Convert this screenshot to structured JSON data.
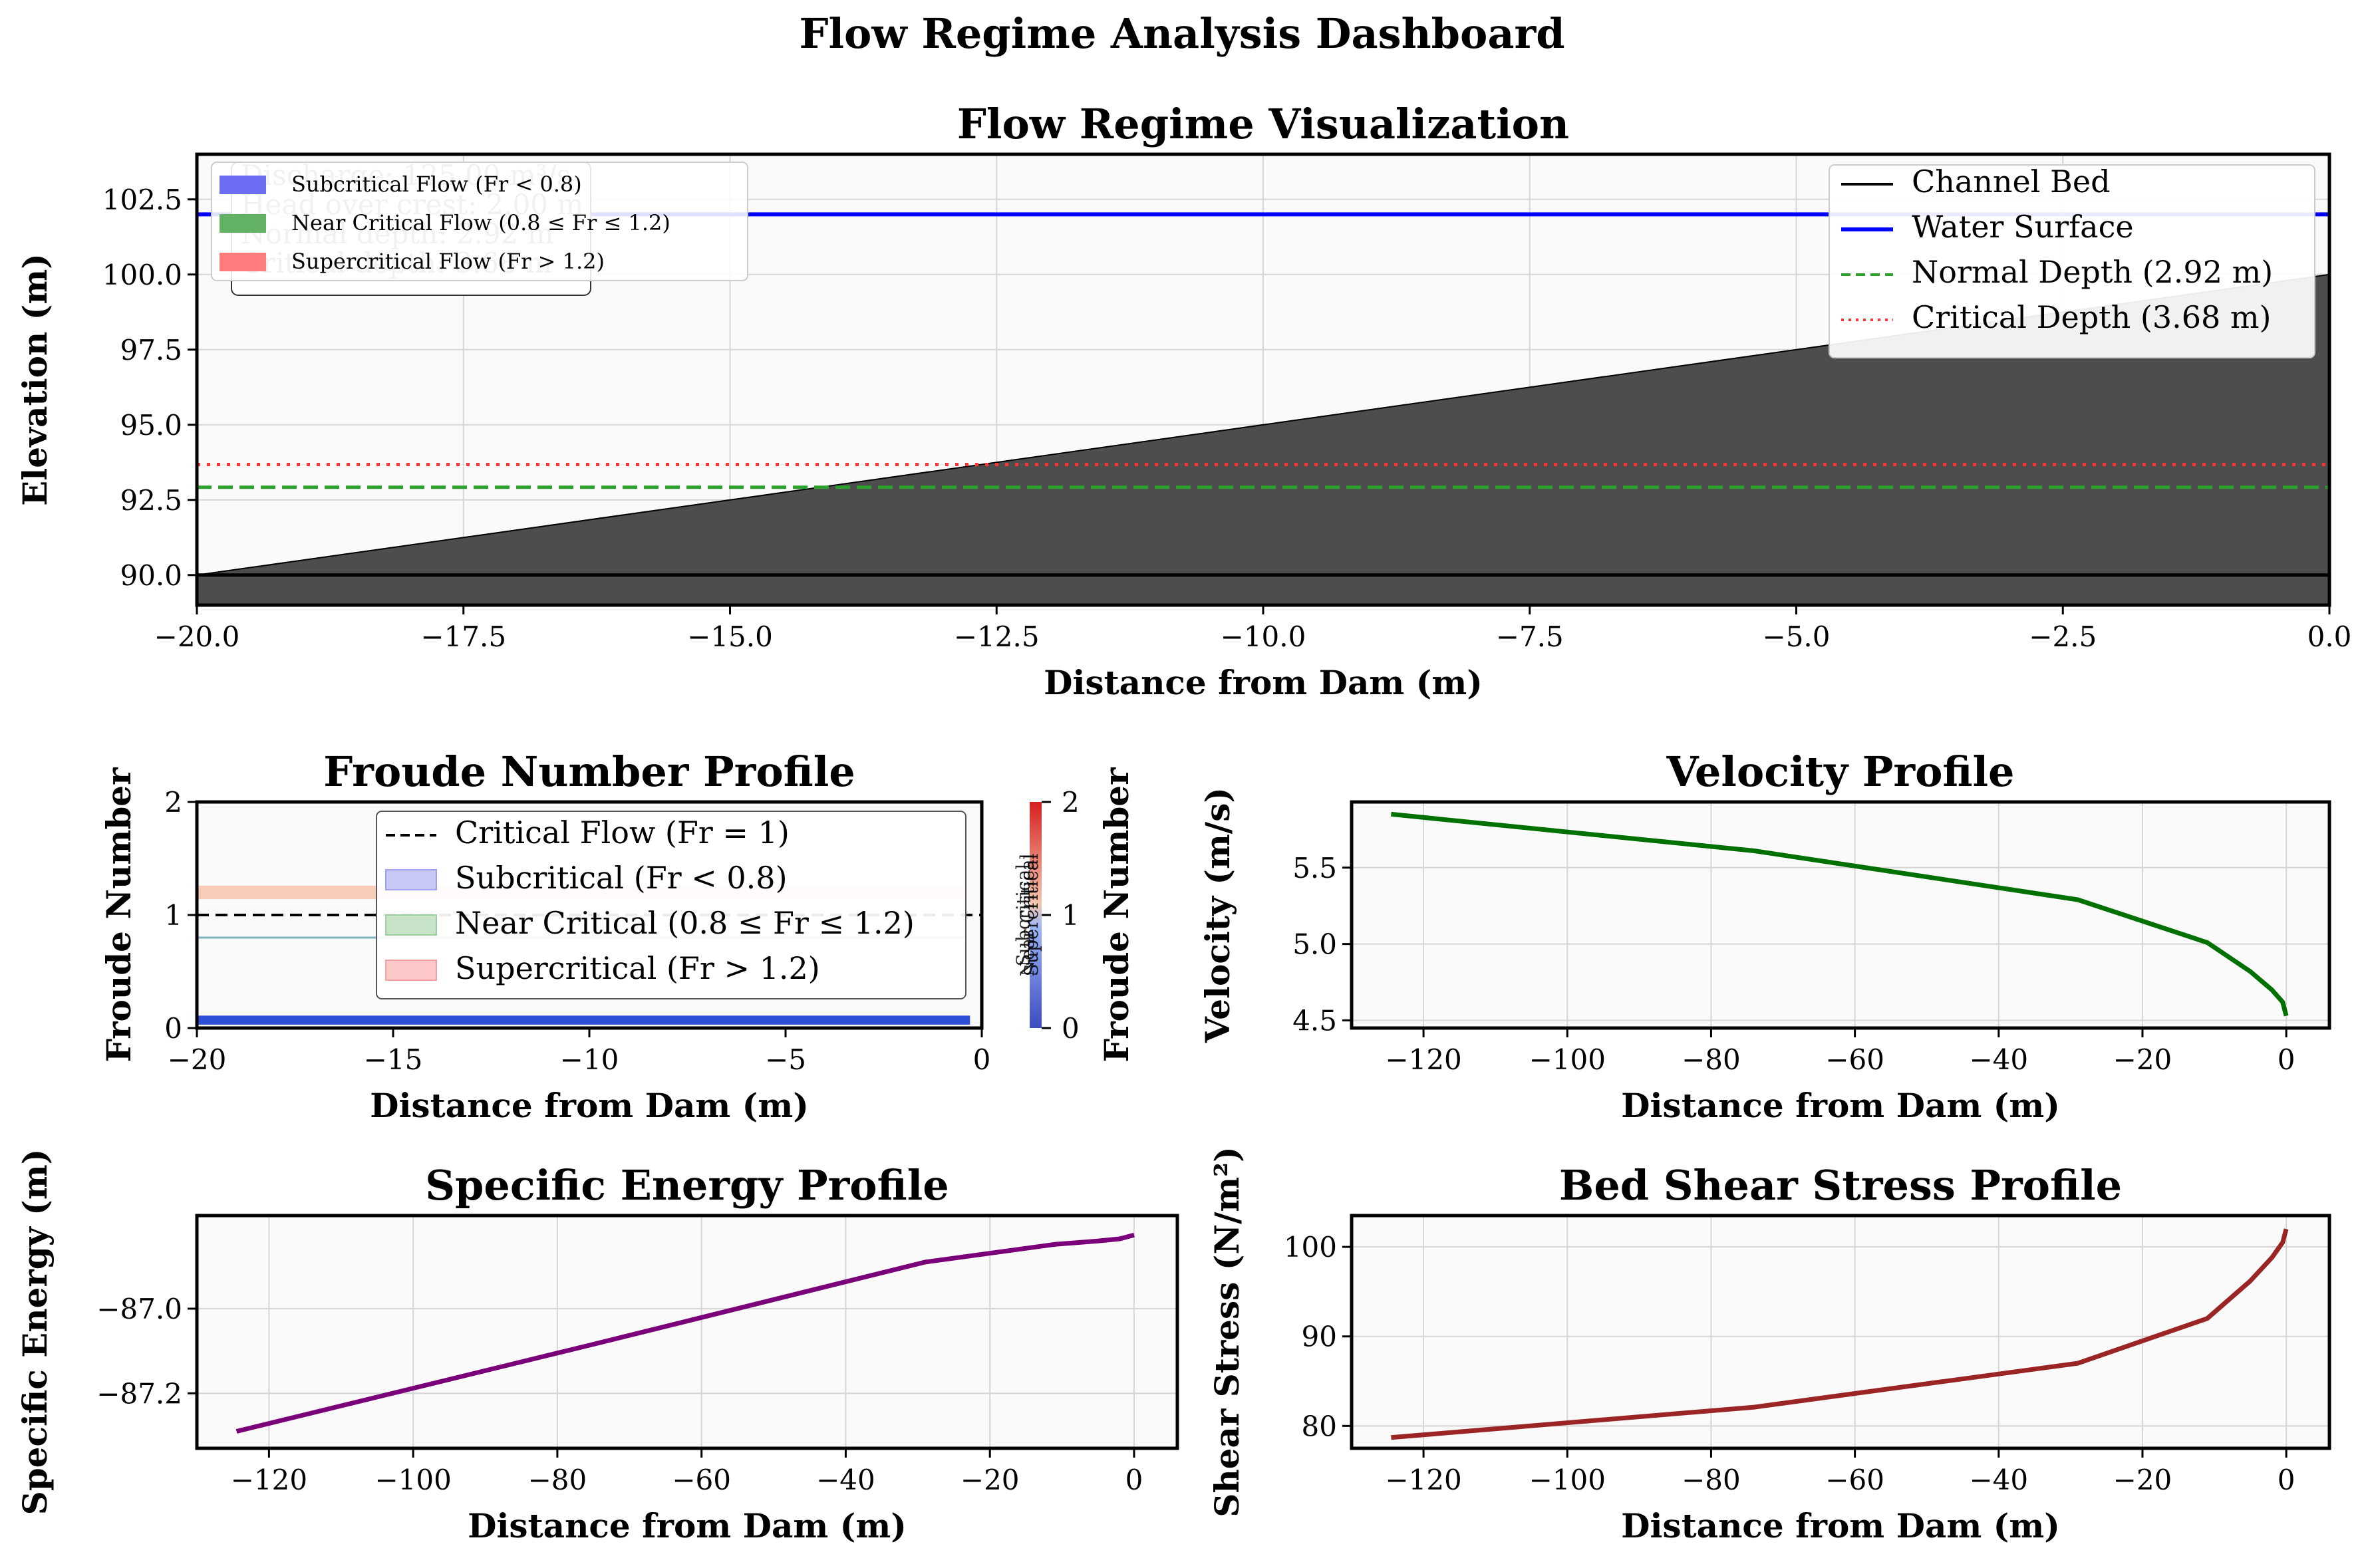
{
  "dashboard_title": "Flow Regime Analysis Dashboard",
  "colors": {
    "bed_fill": "#4d4d4d",
    "water": "#0000ff",
    "normal": "#2ca02c",
    "critical": "#ff3333",
    "velocity": "#007000",
    "energy": "#7a007a",
    "shear": "#9b2424",
    "sub_fill": "#6d6df4",
    "near_fill": "#63b163",
    "super_fill": "#ff7c7c",
    "panel_bg": "#fafafa",
    "grid": "#d6d6d6"
  },
  "chart_data": [
    {
      "id": "regime",
      "type": "area",
      "title": "Flow Regime Visualization",
      "xlabel": "Distance from Dam (m)",
      "ylabel": "Elevation (m)",
      "xlim": [
        -20,
        0
      ],
      "ylim": [
        89,
        104
      ],
      "xticks": [
        -20.0,
        -17.5,
        -15.0,
        -12.5,
        -10.0,
        -7.5,
        -5.0,
        -2.5,
        0.0
      ],
      "xtick_labels": [
        "−20.0",
        "−17.5",
        "−15.0",
        "−12.5",
        "−10.0",
        "−7.5",
        "−5.0",
        "−2.5",
        "0.0"
      ],
      "yticks": [
        90.0,
        92.5,
        95.0,
        97.5,
        100.0,
        102.5
      ],
      "ytick_labels": [
        "90.0",
        "92.5",
        "95.0",
        "97.5",
        "100.0",
        "102.5"
      ],
      "grid": true,
      "series": [
        {
          "name": "Channel Bed",
          "x": [
            -20,
            0
          ],
          "y": [
            90.0,
            100.0
          ]
        },
        {
          "name": "Water Surface",
          "x": [
            -20,
            0
          ],
          "y": [
            102.0,
            102.0
          ]
        },
        {
          "name": "Normal Depth (2.92 m)",
          "x": [
            -20,
            0
          ],
          "y": [
            92.92,
            92.92
          ]
        },
        {
          "name": "Critical Depth (3.68 m)",
          "x": [
            -20,
            0
          ],
          "y": [
            93.68,
            93.68
          ]
        }
      ],
      "legend_right": [
        "Channel Bed",
        "Water Surface",
        "Normal Depth (2.92 m)",
        "Critical Depth (3.68 m)"
      ],
      "legend_left": [
        "Subcritical Flow (Fr < 0.8)",
        "Near Critical Flow (0.8 ≤ Fr ≤ 1.2)",
        "Supercritical Flow (Fr > 1.2)"
      ],
      "info_box_lines": [
        "Discharge: 125.00 m³/s",
        "Head over crest: 2.00 m",
        "Normal depth: 2.92 m",
        "Critical depth: 3.68 m"
      ],
      "legend_placement": "top-right"
    },
    {
      "id": "froude",
      "type": "line",
      "title": "Froude Number Profile",
      "xlabel": "Distance from Dam (m)",
      "ylabel": "Froude Number",
      "right_ylabel": "Froude Number",
      "xlim": [
        -20,
        0
      ],
      "ylim": [
        0,
        2
      ],
      "xticks": [
        -20,
        -15,
        -10,
        -5,
        0
      ],
      "xtick_labels": [
        "−20",
        "−15",
        "−10",
        "−5",
        "0"
      ],
      "yticks": [
        0,
        1,
        2
      ],
      "ytick_labels": [
        "0",
        "1",
        "2"
      ],
      "colorbar_ticks": [
        "0",
        "1",
        "2"
      ],
      "colorbar_labels": [
        "Subcritical",
        "Near Critical",
        "Supercritical"
      ],
      "critical_flow": 1,
      "near_critical_band": [
        0.8,
        1.2
      ],
      "froude_values": {
        "x": [
          -20,
          -0.3
        ],
        "y": [
          0.08,
          0.08
        ]
      },
      "legend": [
        "Critical Flow (Fr = 1)",
        "Subcritical (Fr < 0.8)",
        "Near Critical (0.8 ≤ Fr ≤ 1.2)",
        "Supercritical (Fr > 1.2)"
      ],
      "legend_placement": "upper-center",
      "grid": false
    },
    {
      "id": "velocity",
      "type": "line",
      "title": "Velocity Profile",
      "xlabel": "Distance from Dam (m)",
      "ylabel": "Velocity (m/s)",
      "xlim": [
        -130,
        6
      ],
      "ylim": [
        4.45,
        5.93
      ],
      "xticks": [
        -120,
        -100,
        -80,
        -60,
        -40,
        -20,
        0
      ],
      "xtick_labels": [
        "−120",
        "−100",
        "−80",
        "−60",
        "−40",
        "−20",
        "0"
      ],
      "yticks": [
        4.5,
        5.0,
        5.5
      ],
      "ytick_labels": [
        "4.5",
        "5.0",
        "5.5"
      ],
      "x": [
        -124.5,
        -74,
        -29,
        -11,
        -5,
        -2,
        -0.5,
        0
      ],
      "y": [
        5.85,
        5.61,
        5.29,
        5.01,
        4.82,
        4.7,
        4.62,
        4.53
      ],
      "grid": true
    },
    {
      "id": "energy",
      "type": "line",
      "title": "Specific Energy Profile",
      "xlabel": "Distance from Dam (m)",
      "ylabel": "Specific Energy (m)",
      "xlim": [
        -130,
        6
      ],
      "ylim": [
        -87.33,
        -86.78
      ],
      "xticks": [
        -120,
        -100,
        -80,
        -60,
        -40,
        -20,
        0
      ],
      "xtick_labels": [
        "−120",
        "−100",
        "−80",
        "−60",
        "−40",
        "−20",
        "0"
      ],
      "yticks": [
        -87.2,
        -87.0
      ],
      "ytick_labels": [
        "−87.2",
        "−87.0"
      ],
      "x": [
        -124.5,
        -74,
        -29,
        -11,
        -5,
        -2,
        0
      ],
      "y": [
        -87.29,
        -87.08,
        -86.89,
        -86.848,
        -86.84,
        -86.835,
        -86.826
      ],
      "grid": true
    },
    {
      "id": "shear",
      "type": "line",
      "title": "Bed Shear Stress Profile",
      "xlabel": "Distance from Dam (m)",
      "ylabel": "Shear Stress (N/m²)",
      "xlim": [
        -130,
        6
      ],
      "ylim": [
        77.5,
        103.5
      ],
      "xticks": [
        -120,
        -100,
        -80,
        -60,
        -40,
        -20,
        0
      ],
      "xtick_labels": [
        "−120",
        "−100",
        "−80",
        "−60",
        "−40",
        "−20",
        "0"
      ],
      "yticks": [
        80,
        90,
        100
      ],
      "ytick_labels": [
        "80",
        "90",
        "100"
      ],
      "x": [
        -124.5,
        -74,
        -29,
        -11,
        -5,
        -2,
        -0.5,
        0
      ],
      "y": [
        78.7,
        82.1,
        87.0,
        92.0,
        96.2,
        98.8,
        100.5,
        102.0
      ],
      "grid": true
    }
  ]
}
